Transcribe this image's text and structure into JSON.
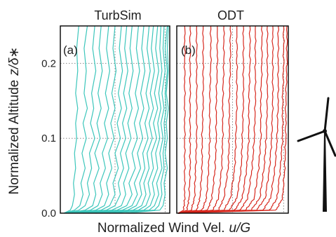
{
  "chart_data": [
    {
      "type": "line",
      "title": "TurbSim",
      "panel_label": "(a)",
      "color": "#3cc6bb",
      "ylim": [
        0,
        0.25
      ],
      "yticks": [
        "0.0",
        "0.1",
        "0.2"
      ],
      "grid": true,
      "n_profiles": 18,
      "series": [
        {
          "x": [
            0.02,
            0.08,
            0.1,
            0.12,
            0.11,
            0.13,
            0.12,
            0.14,
            0.13,
            0.15,
            0.13,
            0.15,
            0.14,
            0.16
          ],
          "y": [
            0.0,
            0.004,
            0.01,
            0.025,
            0.04,
            0.06,
            0.08,
            0.1,
            0.12,
            0.14,
            0.16,
            0.19,
            0.22,
            0.25
          ]
        },
        {
          "x": [
            0.02,
            0.12,
            0.17,
            0.2,
            0.18,
            0.22,
            0.19,
            0.23,
            0.2,
            0.24,
            0.21,
            0.23,
            0.21,
            0.24
          ],
          "y": [
            0.0,
            0.004,
            0.01,
            0.025,
            0.04,
            0.06,
            0.08,
            0.1,
            0.12,
            0.14,
            0.16,
            0.19,
            0.22,
            0.25
          ]
        },
        {
          "x": [
            0.03,
            0.16,
            0.22,
            0.26,
            0.24,
            0.28,
            0.26,
            0.31,
            0.27,
            0.3,
            0.28,
            0.32,
            0.29,
            0.31
          ],
          "y": [
            0.0,
            0.004,
            0.01,
            0.025,
            0.04,
            0.06,
            0.08,
            0.1,
            0.12,
            0.14,
            0.16,
            0.19,
            0.22,
            0.25
          ]
        },
        {
          "x": [
            0.04,
            0.22,
            0.29,
            0.32,
            0.3,
            0.35,
            0.31,
            0.36,
            0.33,
            0.37,
            0.34,
            0.38,
            0.35,
            0.37
          ],
          "y": [
            0.0,
            0.004,
            0.01,
            0.025,
            0.04,
            0.06,
            0.08,
            0.1,
            0.12,
            0.14,
            0.16,
            0.19,
            0.22,
            0.25
          ]
        },
        {
          "x": [
            0.05,
            0.27,
            0.34,
            0.38,
            0.36,
            0.41,
            0.38,
            0.43,
            0.4,
            0.44,
            0.41,
            0.45,
            0.42,
            0.44
          ],
          "y": [
            0.0,
            0.004,
            0.01,
            0.025,
            0.04,
            0.06,
            0.08,
            0.1,
            0.12,
            0.14,
            0.16,
            0.19,
            0.22,
            0.25
          ]
        },
        {
          "x": [
            0.06,
            0.32,
            0.4,
            0.44,
            0.42,
            0.47,
            0.44,
            0.49,
            0.46,
            0.5,
            0.47,
            0.51,
            0.48,
            0.5
          ],
          "y": [
            0.0,
            0.004,
            0.01,
            0.025,
            0.04,
            0.06,
            0.08,
            0.1,
            0.12,
            0.14,
            0.16,
            0.19,
            0.22,
            0.25
          ]
        },
        {
          "x": [
            0.07,
            0.37,
            0.45,
            0.5,
            0.48,
            0.53,
            0.5,
            0.55,
            0.52,
            0.56,
            0.53,
            0.57,
            0.54,
            0.56
          ],
          "y": [
            0.0,
            0.004,
            0.01,
            0.025,
            0.04,
            0.06,
            0.08,
            0.1,
            0.12,
            0.14,
            0.16,
            0.19,
            0.22,
            0.25
          ]
        },
        {
          "x": [
            0.08,
            0.42,
            0.5,
            0.55,
            0.53,
            0.58,
            0.55,
            0.6,
            0.57,
            0.61,
            0.58,
            0.62,
            0.59,
            0.61
          ],
          "y": [
            0.0,
            0.004,
            0.01,
            0.025,
            0.04,
            0.06,
            0.08,
            0.1,
            0.12,
            0.14,
            0.16,
            0.19,
            0.22,
            0.25
          ]
        },
        {
          "x": [
            0.09,
            0.47,
            0.56,
            0.6,
            0.58,
            0.63,
            0.6,
            0.65,
            0.62,
            0.66,
            0.63,
            0.67,
            0.64,
            0.66
          ],
          "y": [
            0.0,
            0.004,
            0.01,
            0.025,
            0.04,
            0.06,
            0.08,
            0.1,
            0.12,
            0.14,
            0.16,
            0.19,
            0.22,
            0.25
          ]
        },
        {
          "x": [
            0.1,
            0.52,
            0.61,
            0.66,
            0.63,
            0.69,
            0.66,
            0.71,
            0.68,
            0.72,
            0.69,
            0.73,
            0.7,
            0.72
          ],
          "y": [
            0.0,
            0.004,
            0.01,
            0.025,
            0.04,
            0.06,
            0.08,
            0.1,
            0.12,
            0.14,
            0.16,
            0.19,
            0.22,
            0.25
          ]
        },
        {
          "x": [
            0.12,
            0.57,
            0.66,
            0.71,
            0.68,
            0.74,
            0.71,
            0.76,
            0.73,
            0.77,
            0.74,
            0.78,
            0.75,
            0.77
          ],
          "y": [
            0.0,
            0.004,
            0.01,
            0.025,
            0.04,
            0.06,
            0.08,
            0.1,
            0.12,
            0.14,
            0.16,
            0.19,
            0.22,
            0.25
          ]
        },
        {
          "x": [
            0.14,
            0.62,
            0.7,
            0.75,
            0.73,
            0.78,
            0.76,
            0.81,
            0.78,
            0.82,
            0.79,
            0.83,
            0.8,
            0.82
          ],
          "y": [
            0.0,
            0.004,
            0.01,
            0.025,
            0.04,
            0.06,
            0.08,
            0.1,
            0.12,
            0.14,
            0.16,
            0.19,
            0.22,
            0.25
          ]
        },
        {
          "x": [
            0.16,
            0.67,
            0.75,
            0.79,
            0.77,
            0.82,
            0.8,
            0.85,
            0.82,
            0.86,
            0.83,
            0.87,
            0.84,
            0.86
          ],
          "y": [
            0.0,
            0.004,
            0.01,
            0.025,
            0.04,
            0.06,
            0.08,
            0.1,
            0.12,
            0.14,
            0.16,
            0.19,
            0.22,
            0.25
          ]
        },
        {
          "x": [
            0.2,
            0.72,
            0.79,
            0.83,
            0.81,
            0.86,
            0.84,
            0.89,
            0.86,
            0.9,
            0.87,
            0.91,
            0.88,
            0.9
          ],
          "y": [
            0.0,
            0.004,
            0.01,
            0.025,
            0.04,
            0.06,
            0.08,
            0.1,
            0.12,
            0.14,
            0.16,
            0.19,
            0.22,
            0.25
          ]
        },
        {
          "x": [
            0.25,
            0.77,
            0.83,
            0.87,
            0.85,
            0.9,
            0.88,
            0.92,
            0.9,
            0.93,
            0.91,
            0.94,
            0.92,
            0.93
          ],
          "y": [
            0.0,
            0.004,
            0.01,
            0.025,
            0.04,
            0.06,
            0.08,
            0.1,
            0.12,
            0.14,
            0.16,
            0.19,
            0.22,
            0.25
          ]
        },
        {
          "x": [
            0.32,
            0.82,
            0.87,
            0.91,
            0.89,
            0.94,
            0.92,
            0.95,
            0.93,
            0.96,
            0.94,
            0.97,
            0.95,
            0.96
          ],
          "y": [
            0.0,
            0.004,
            0.01,
            0.025,
            0.04,
            0.06,
            0.08,
            0.1,
            0.12,
            0.14,
            0.16,
            0.19,
            0.22,
            0.25
          ]
        },
        {
          "x": [
            0.45,
            0.87,
            0.91,
            0.94,
            0.93,
            0.96,
            0.95,
            0.97,
            0.96,
            0.98,
            0.97,
            0.99,
            0.97,
            0.99
          ],
          "y": [
            0.0,
            0.004,
            0.01,
            0.025,
            0.04,
            0.06,
            0.08,
            0.1,
            0.12,
            0.14,
            0.16,
            0.19,
            0.22,
            0.25
          ]
        },
        {
          "x": [
            0.6,
            0.92,
            0.95,
            0.97,
            0.96,
            0.99,
            0.97,
            0.99,
            0.98,
            1.0,
            0.98,
            1.0,
            0.99,
            1.0
          ],
          "y": [
            0.0,
            0.004,
            0.01,
            0.025,
            0.04,
            0.06,
            0.08,
            0.1,
            0.12,
            0.14,
            0.16,
            0.19,
            0.22,
            0.25
          ]
        }
      ]
    },
    {
      "type": "line",
      "title": "ODT",
      "panel_label": "(b)",
      "color": "#d7281e",
      "ylim": [
        0,
        0.25
      ],
      "yticks": [
        "0.0",
        "0.1",
        "0.2"
      ],
      "grid": true,
      "n_profiles": 18,
      "series": [
        {
          "x": [
            0.0,
            0.05,
            0.06,
            0.06,
            0.06,
            0.06,
            0.06,
            0.06
          ],
          "y": [
            0.0,
            0.004,
            0.02,
            0.06,
            0.1,
            0.15,
            0.2,
            0.25
          ]
        },
        {
          "x": [
            0.0,
            0.08,
            0.1,
            0.11,
            0.11,
            0.11,
            0.11,
            0.11
          ],
          "y": [
            0.0,
            0.004,
            0.02,
            0.06,
            0.1,
            0.15,
            0.2,
            0.25
          ]
        },
        {
          "x": [
            0.0,
            0.12,
            0.15,
            0.16,
            0.17,
            0.17,
            0.17,
            0.17
          ],
          "y": [
            0.0,
            0.004,
            0.02,
            0.06,
            0.1,
            0.15,
            0.2,
            0.25
          ]
        },
        {
          "x": [
            0.0,
            0.17,
            0.2,
            0.22,
            0.22,
            0.23,
            0.23,
            0.23
          ],
          "y": [
            0.0,
            0.004,
            0.02,
            0.06,
            0.1,
            0.15,
            0.2,
            0.25
          ]
        },
        {
          "x": [
            0.0,
            0.22,
            0.26,
            0.28,
            0.29,
            0.29,
            0.3,
            0.3
          ],
          "y": [
            0.0,
            0.004,
            0.02,
            0.06,
            0.1,
            0.15,
            0.2,
            0.25
          ]
        },
        {
          "x": [
            0.0,
            0.27,
            0.31,
            0.34,
            0.35,
            0.35,
            0.36,
            0.36
          ],
          "y": [
            0.0,
            0.004,
            0.02,
            0.06,
            0.1,
            0.15,
            0.2,
            0.25
          ]
        },
        {
          "x": [
            0.0,
            0.32,
            0.37,
            0.4,
            0.41,
            0.41,
            0.42,
            0.42
          ],
          "y": [
            0.0,
            0.004,
            0.02,
            0.06,
            0.1,
            0.15,
            0.2,
            0.25
          ]
        },
        {
          "x": [
            0.0,
            0.37,
            0.42,
            0.46,
            0.47,
            0.47,
            0.48,
            0.48
          ],
          "y": [
            0.0,
            0.004,
            0.02,
            0.06,
            0.1,
            0.15,
            0.2,
            0.25
          ]
        },
        {
          "x": [
            0.0,
            0.42,
            0.48,
            0.52,
            0.53,
            0.54,
            0.54,
            0.54
          ],
          "y": [
            0.0,
            0.004,
            0.02,
            0.06,
            0.1,
            0.15,
            0.2,
            0.25
          ]
        },
        {
          "x": [
            0.0,
            0.47,
            0.54,
            0.58,
            0.59,
            0.6,
            0.6,
            0.6
          ],
          "y": [
            0.0,
            0.004,
            0.02,
            0.06,
            0.1,
            0.15,
            0.2,
            0.25
          ]
        },
        {
          "x": [
            0.0,
            0.52,
            0.59,
            0.63,
            0.65,
            0.65,
            0.66,
            0.66
          ],
          "y": [
            0.0,
            0.004,
            0.02,
            0.06,
            0.1,
            0.15,
            0.2,
            0.25
          ]
        },
        {
          "x": [
            0.0,
            0.57,
            0.64,
            0.68,
            0.7,
            0.71,
            0.71,
            0.71
          ],
          "y": [
            0.0,
            0.004,
            0.02,
            0.06,
            0.1,
            0.15,
            0.2,
            0.25
          ]
        },
        {
          "x": [
            0.0,
            0.62,
            0.7,
            0.74,
            0.76,
            0.76,
            0.77,
            0.77
          ],
          "y": [
            0.0,
            0.004,
            0.02,
            0.06,
            0.1,
            0.15,
            0.2,
            0.25
          ]
        },
        {
          "x": [
            0.0,
            0.67,
            0.75,
            0.79,
            0.81,
            0.82,
            0.82,
            0.82
          ],
          "y": [
            0.0,
            0.004,
            0.02,
            0.06,
            0.1,
            0.15,
            0.2,
            0.25
          ]
        },
        {
          "x": [
            0.0,
            0.72,
            0.8,
            0.84,
            0.86,
            0.87,
            0.87,
            0.87
          ],
          "y": [
            0.0,
            0.004,
            0.02,
            0.06,
            0.1,
            0.15,
            0.2,
            0.25
          ]
        },
        {
          "x": [
            0.0,
            0.78,
            0.85,
            0.89,
            0.91,
            0.92,
            0.92,
            0.92
          ],
          "y": [
            0.0,
            0.004,
            0.02,
            0.06,
            0.1,
            0.15,
            0.2,
            0.25
          ]
        },
        {
          "x": [
            0.0,
            0.84,
            0.91,
            0.94,
            0.96,
            0.96,
            0.97,
            0.97
          ],
          "y": [
            0.0,
            0.004,
            0.02,
            0.06,
            0.1,
            0.15,
            0.2,
            0.25
          ]
        },
        {
          "x": [
            0.0,
            0.9,
            0.96,
            0.98,
            0.99,
            0.99,
            1.0,
            1.0
          ],
          "y": [
            0.0,
            0.004,
            0.02,
            0.06,
            0.1,
            0.15,
            0.2,
            0.25
          ]
        }
      ]
    }
  ],
  "ylabel_text": "Normalized Altitude",
  "ylabel_math": "z/δ∗",
  "xlabel_text": "Normalized Wind Vel.",
  "xlabel_math": "u/G",
  "icon": "wind-turbine-icon"
}
